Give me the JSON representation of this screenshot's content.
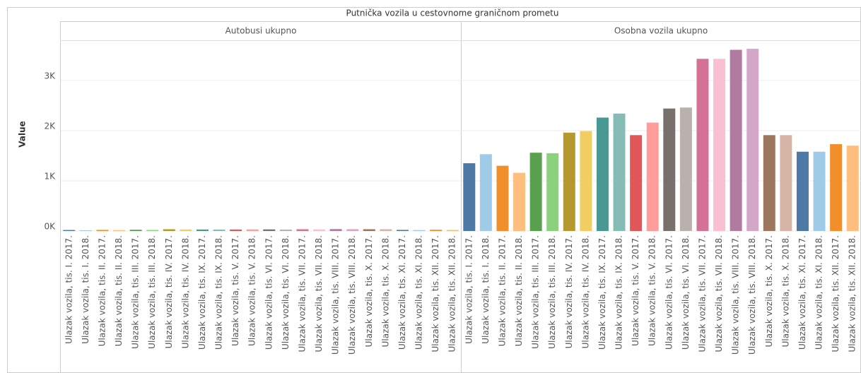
{
  "chart_data": {
    "type": "bar",
    "title": "Putnička vozila u cestovnome graničnom prometu",
    "y_label": "Value",
    "ylim": [
      0,
      3800
    ],
    "yticks": [
      {
        "value": 0,
        "label": "0K"
      },
      {
        "value": 1000,
        "label": "1K"
      },
      {
        "value": 2000,
        "label": "2K"
      },
      {
        "value": 3000,
        "label": "3K"
      }
    ],
    "grid": true,
    "categories": [
      "Ulazak vozila, tis. I. 2017.",
      "Ulazak vozila, tis. I. 2018.",
      "Ulazak vozila, tis. II. 2017.",
      "Ulazak vozila, tis. II. 2018.",
      "Ulazak vozila, tis. III. 2017.",
      "Ulazak vozila, tis. III. 2018.",
      "Ulazak vozila, tis. IV. 2017.",
      "Ulazak vozila, tis. IV. 2018.",
      "Ulazak vozila, tis. IX. 2017.",
      "Ulazak vozila, tis. IX. 2018.",
      "Ulazak vozila, tis. V. 2017.",
      "Ulazak vozila, tis. V. 2018.",
      "Ulazak vozila, tis. VI. 2017.",
      "Ulazak vozila, tis. VI. 2018.",
      "Ulazak vozila, tis. VII. 2017.",
      "Ulazak vozila, tis. VII. 2018.",
      "Ulazak vozila, tis. VIII. 2017.",
      "Ulazak vozila, tis. VIII. 2018.",
      "Ulazak vozila, tis. X. 2017.",
      "Ulazak vozila, tis. X. 2018.",
      "Ulazak vozila, tis. XI. 2017.",
      "Ulazak vozila, tis. XI. 2018.",
      "Ulazak vozila, tis. XII. 2017.",
      "Ulazak vozila, tis. XII. 2018."
    ],
    "colors": [
      "#4e79a7",
      "#a0cbe8",
      "#f28e2b",
      "#ffbe7d",
      "#59a14f",
      "#8cd17d",
      "#b6992d",
      "#f1ce63",
      "#499894",
      "#86bcb6",
      "#e15759",
      "#ff9d9a",
      "#79706e",
      "#bab0ac",
      "#d37295",
      "#fabfd2",
      "#b07aa1",
      "#d4a6c8",
      "#9d7660",
      "#d7b5a6",
      "#4e79a7",
      "#a0cbe8",
      "#f28e2b",
      "#ffbe7d"
    ],
    "series": [
      {
        "name": "Autobusi ukupno",
        "values": [
          20,
          15,
          22,
          18,
          25,
          20,
          35,
          30,
          30,
          28,
          30,
          32,
          32,
          28,
          35,
          32,
          38,
          36,
          35,
          35,
          22,
          18,
          25,
          22
        ]
      },
      {
        "name": "Osobna vozila ukupno",
        "values": [
          1350,
          1530,
          1300,
          1160,
          1560,
          1550,
          1960,
          1990,
          2260,
          2340,
          1910,
          2160,
          2440,
          2460,
          3430,
          3430,
          3610,
          3630,
          1910,
          1910,
          1580,
          1580,
          1730,
          1700
        ]
      }
    ]
  }
}
